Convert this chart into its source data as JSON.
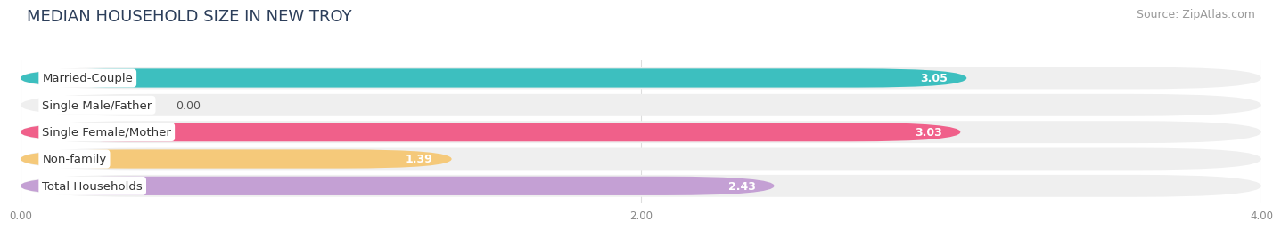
{
  "title": "MEDIAN HOUSEHOLD SIZE IN NEW TROY",
  "source": "Source: ZipAtlas.com",
  "categories": [
    "Married-Couple",
    "Single Male/Father",
    "Single Female/Mother",
    "Non-family",
    "Total Households"
  ],
  "values": [
    3.05,
    0.0,
    3.03,
    1.39,
    2.43
  ],
  "bar_colors": [
    "#3dbfbf",
    "#aabce8",
    "#f0608a",
    "#f5c97a",
    "#c4a0d4"
  ],
  "bar_bg_color": "#efefef",
  "xlim": [
    0,
    4.0
  ],
  "xticks": [
    0.0,
    2.0,
    4.0
  ],
  "xtick_labels": [
    "0.00",
    "2.00",
    "4.00"
  ],
  "title_fontsize": 13,
  "source_fontsize": 9,
  "label_fontsize": 9.5,
  "value_fontsize": 9,
  "background_color": "#ffffff"
}
